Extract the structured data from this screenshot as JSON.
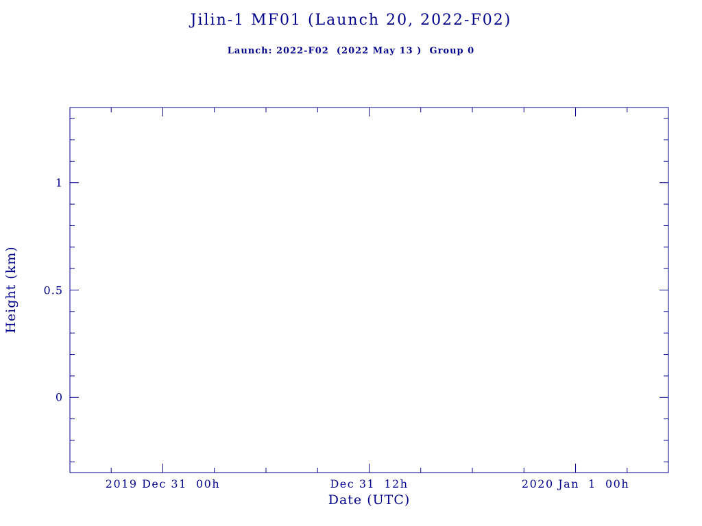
{
  "page": {
    "background": "#ffffff"
  },
  "chart_data": {
    "type": "line",
    "title": "Jilin-1 MF01 (Launch 20, 2022-F02)",
    "subtitle": "Launch: 2022-F02  (2022 May 13 )  Group 0",
    "xlabel": "Date (UTC)",
    "ylabel": "Height (km)",
    "axis_color": "#00008B",
    "grid": false,
    "legend": null,
    "x_axis": {
      "range": [
        -5.4,
        29.4
      ],
      "minor_step": 3,
      "ticks": [
        {
          "label": "2019 Dec 31  00h",
          "value": 0
        },
        {
          "label": "Dec 31  12h",
          "value": 12
        },
        {
          "label": "2020 Jan  1  00h",
          "value": 24
        }
      ]
    },
    "y_axis": {
      "range": [
        -0.35,
        1.35
      ],
      "minor_step": 0.1,
      "ticks": [
        {
          "label": "0",
          "value": 0
        },
        {
          "label": "0.5",
          "value": 0.5
        },
        {
          "label": "1",
          "value": 1
        }
      ]
    },
    "series": []
  }
}
